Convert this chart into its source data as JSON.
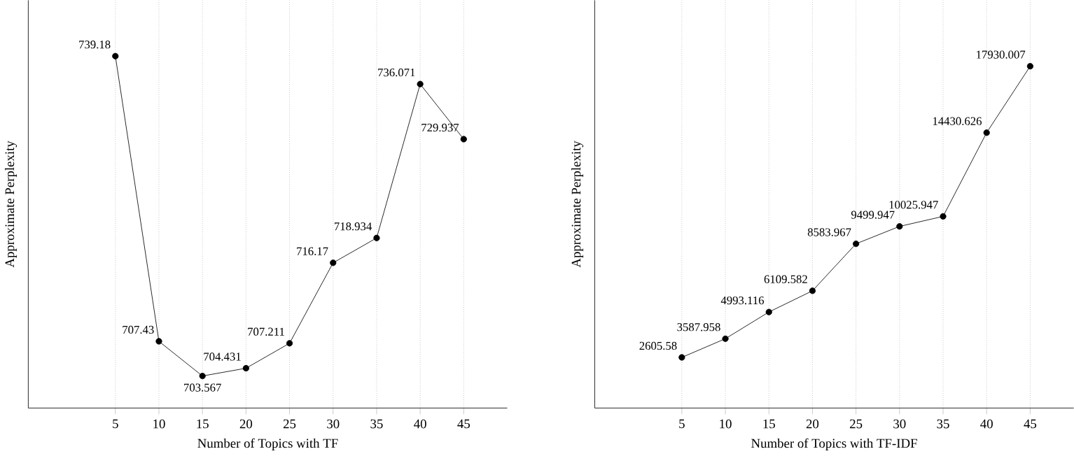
{
  "chart_data": [
    {
      "type": "line",
      "xlabel": "Number of Topics with TF",
      "ylabel": "Approximate Perplexity",
      "x": [
        5,
        10,
        15,
        20,
        25,
        30,
        35,
        40,
        45
      ],
      "series": [
        {
          "color": "#000000",
          "values": [
            739.18,
            707.43,
            703.567,
            704.431,
            707.211,
            716.17,
            718.934,
            736.071,
            729.937
          ],
          "value_labels": [
            "739.18",
            "707.43",
            "703.567",
            "704.431",
            "707.211",
            "716.17",
            "718.934",
            "736.071",
            "729.937"
          ]
        }
      ],
      "xlim": [
        -5,
        50
      ],
      "ylim": [
        700,
        745.4
      ],
      "xticks": [
        5,
        10,
        15,
        20,
        25,
        30,
        35,
        40,
        45
      ],
      "tick_labels": "x",
      "grid": "x",
      "marker": "circle",
      "line_style": "solid"
    },
    {
      "type": "line",
      "xlabel": "Number of Topics with TF-IDF",
      "ylabel": "Approximate Perplexity",
      "x": [
        5,
        10,
        15,
        20,
        25,
        30,
        35,
        40,
        45
      ],
      "series": [
        {
          "color": "#000000",
          "values": [
            2605.58,
            3587.958,
            4993.116,
            6109.582,
            8583.967,
            9499.947,
            10025.947,
            14430.626,
            17930.007
          ],
          "value_labels": [
            "2605.58",
            "3587.958",
            "4993.116",
            "6109.582",
            "8583.967",
            "9499.947",
            "10025.947",
            "14430.626",
            "17930.007"
          ]
        }
      ],
      "xlim": [
        -5,
        50
      ],
      "ylim": [
        -60,
        21400
      ],
      "xticks": [
        5,
        10,
        15,
        20,
        25,
        30,
        35,
        40,
        45
      ],
      "tick_labels": "x",
      "grid": "x",
      "marker": "circle",
      "line_style": "solid"
    }
  ]
}
